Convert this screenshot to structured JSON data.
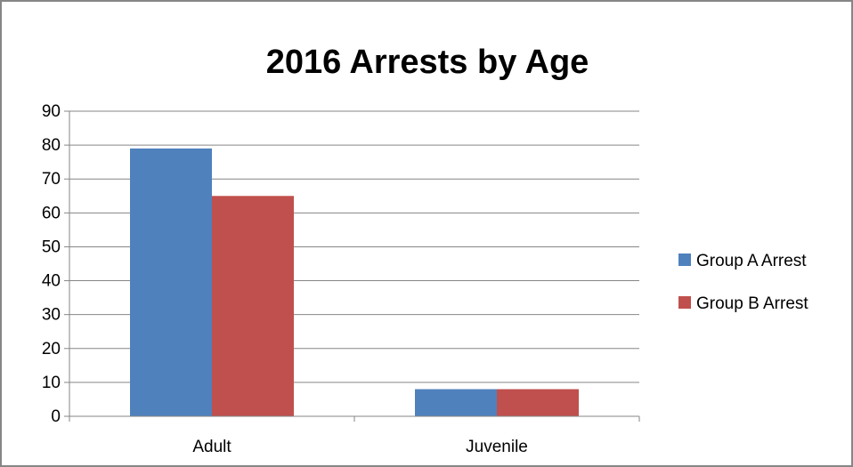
{
  "chart_data": {
    "type": "bar",
    "title": "2016 Arrests by Age",
    "xlabel": "",
    "ylabel": "",
    "categories": [
      "Adult",
      "Juvenile"
    ],
    "series": [
      {
        "name": "Group A Arrest",
        "values": [
          79,
          8
        ],
        "color": "#4F81BD"
      },
      {
        "name": "Group B Arrest",
        "values": [
          65,
          8
        ],
        "color": "#C0504D"
      }
    ],
    "ylim": [
      0,
      90
    ],
    "yticks": [
      0,
      10,
      20,
      30,
      40,
      50,
      60,
      70,
      80,
      90
    ],
    "grid": "horizontal",
    "legend_position": "right"
  },
  "colors": {
    "frame_border": "#868686",
    "gridline": "#868686",
    "axis": "#868686"
  }
}
